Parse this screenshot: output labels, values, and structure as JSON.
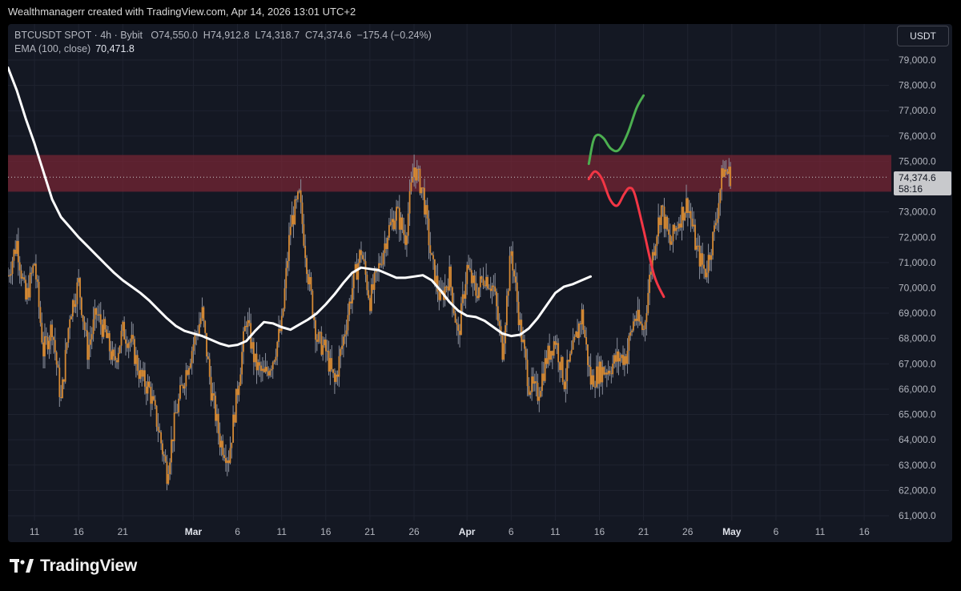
{
  "header": {
    "attribution": "Wealthmanagerr created with TradingView.com, Apr 14, 2026 13:01 UTC+2"
  },
  "legend": {
    "symbol": "BTCUSDT SPOT · 4h · Bybit",
    "o_label": "O",
    "o": "74,550.0",
    "h_label": "H",
    "h": "74,912.8",
    "l_label": "L",
    "l": "74,318.7",
    "c_label": "C",
    "c": "74,374.6",
    "change": "−175.4 (−0.24%)",
    "ema_label": "EMA (100, close)",
    "ema_value": "70,471.8"
  },
  "currency_button": "USDT",
  "price_tag": {
    "price": "74,374.6",
    "countdown": "58:16"
  },
  "brand": "TradingView",
  "colors": {
    "background": "#141823",
    "grid": "#1f2330",
    "zone": "#7a2534",
    "ema": "#ffffff",
    "candle": "#d68a34",
    "wick": "#8a8f9c",
    "bull_path": "#4caf50",
    "bear_path": "#f23645"
  },
  "chart_data": {
    "type": "line",
    "title": "BTCUSDT SPOT · 4h · Bybit",
    "ylim": [
      60600,
      79900
    ],
    "y_ticks": [
      79000,
      78000,
      77000,
      76000,
      75000,
      73000,
      72000,
      71000,
      70000,
      69000,
      68000,
      67000,
      66000,
      65000,
      64000,
      63000,
      62000,
      61000
    ],
    "y_tick_labels": [
      "79,000.0",
      "78,000.0",
      "77,000.0",
      "76,000.0",
      "75,000.0",
      "73,000.0",
      "72,000.0",
      "71,000.0",
      "70,000.0",
      "69,000.0",
      "68,000.0",
      "67,000.0",
      "66,000.0",
      "65,000.0",
      "64,000.0",
      "63,000.0",
      "62,000.0",
      "61,000.0"
    ],
    "x_ticks": [
      {
        "label": "11",
        "day": 11
      },
      {
        "label": "16",
        "day": 16
      },
      {
        "label": "21",
        "day": 21
      },
      {
        "label": "Mar",
        "day": 29,
        "bold": true
      },
      {
        "label": "6",
        "day": 34
      },
      {
        "label": "11",
        "day": 39
      },
      {
        "label": "16",
        "day": 44
      },
      {
        "label": "21",
        "day": 49
      },
      {
        "label": "26",
        "day": 54
      },
      {
        "label": "Apr",
        "day": 60,
        "bold": true
      },
      {
        "label": "6",
        "day": 65
      },
      {
        "label": "11",
        "day": 70
      },
      {
        "label": "16",
        "day": 75
      },
      {
        "label": "21",
        "day": 80
      },
      {
        "label": "26",
        "day": 85
      },
      {
        "label": "May",
        "day": 90,
        "bold": true
      },
      {
        "label": "6",
        "day": 95
      },
      {
        "label": "11",
        "day": 100
      },
      {
        "label": "16",
        "day": 105
      }
    ],
    "x_range_days": [
      8,
      107.8
    ],
    "zone": {
      "low": 73800,
      "high": 75250
    },
    "current_price": 74374.6,
    "price_path": [
      [
        8,
        70500
      ],
      [
        9,
        71800
      ],
      [
        10,
        69500
      ],
      [
        11,
        71000
      ],
      [
        12,
        67500
      ],
      [
        13,
        68500
      ],
      [
        14,
        65500
      ],
      [
        15,
        69000
      ],
      [
        16,
        70200
      ],
      [
        17,
        67500
      ],
      [
        18,
        69000
      ],
      [
        19,
        68200
      ],
      [
        20,
        67000
      ],
      [
        21,
        68300
      ],
      [
        22,
        67800
      ],
      [
        23,
        66500
      ],
      [
        24,
        66000
      ],
      [
        25,
        64500
      ],
      [
        26,
        62700
      ],
      [
        27,
        65000
      ],
      [
        28,
        66500
      ],
      [
        29,
        67800
      ],
      [
        30,
        69000
      ],
      [
        31,
        66000
      ],
      [
        32,
        64000
      ],
      [
        33,
        63300
      ],
      [
        34,
        66000
      ],
      [
        35,
        68800
      ],
      [
        36,
        67000
      ],
      [
        37,
        66500
      ],
      [
        38,
        67200
      ],
      [
        39,
        68500
      ],
      [
        40,
        72500
      ],
      [
        41,
        73600
      ],
      [
        42,
        70500
      ],
      [
        43,
        68000
      ],
      [
        44,
        67500
      ],
      [
        45,
        66200
      ],
      [
        46,
        68000
      ],
      [
        47,
        70000
      ],
      [
        48,
        71500
      ],
      [
        49,
        69500
      ],
      [
        50,
        70800
      ],
      [
        51,
        72200
      ],
      [
        52,
        73000
      ],
      [
        53,
        72000
      ],
      [
        54,
        74800
      ],
      [
        55,
        73800
      ],
      [
        56,
        71000
      ],
      [
        57,
        69500
      ],
      [
        58,
        70500
      ],
      [
        59,
        68000
      ],
      [
        60,
        70800
      ],
      [
        61,
        69800
      ],
      [
        62,
        70500
      ],
      [
        63,
        70000
      ],
      [
        64,
        67500
      ],
      [
        65,
        71500
      ],
      [
        66,
        68500
      ],
      [
        67,
        66200
      ],
      [
        68,
        65800
      ],
      [
        69,
        67200
      ],
      [
        70,
        68000
      ],
      [
        71,
        66300
      ],
      [
        72,
        67500
      ],
      [
        73,
        69000
      ],
      [
        74,
        66300
      ],
      [
        75,
        66700
      ],
      [
        76,
        66800
      ],
      [
        77,
        67200
      ],
      [
        78,
        67300
      ],
      [
        79,
        68900
      ],
      [
        80,
        68300
      ],
      [
        81,
        71300
      ],
      [
        82,
        73200
      ],
      [
        83,
        71700
      ],
      [
        84,
        72700
      ],
      [
        85,
        73400
      ],
      [
        86,
        71500
      ],
      [
        87,
        70600
      ],
      [
        88,
        72200
      ],
      [
        89,
        74700
      ],
      [
        90,
        74400
      ]
    ],
    "ema_path": [
      [
        8,
        78700
      ],
      [
        9,
        77800
      ],
      [
        10,
        76700
      ],
      [
        11,
        75700
      ],
      [
        12,
        74600
      ],
      [
        13,
        73500
      ],
      [
        14,
        72800
      ],
      [
        15,
        72400
      ],
      [
        16,
        72000
      ],
      [
        17,
        71650
      ],
      [
        18,
        71300
      ],
      [
        19,
        70950
      ],
      [
        20,
        70600
      ],
      [
        21,
        70300
      ],
      [
        22,
        70050
      ],
      [
        23,
        69800
      ],
      [
        24,
        69500
      ],
      [
        25,
        69150
      ],
      [
        26,
        68800
      ],
      [
        27,
        68500
      ],
      [
        28,
        68300
      ],
      [
        29,
        68200
      ],
      [
        30,
        68100
      ],
      [
        31,
        67950
      ],
      [
        32,
        67800
      ],
      [
        33,
        67700
      ],
      [
        34,
        67750
      ],
      [
        35,
        67900
      ],
      [
        36,
        68300
      ],
      [
        37,
        68650
      ],
      [
        38,
        68600
      ],
      [
        39,
        68450
      ],
      [
        40,
        68350
      ],
      [
        41,
        68550
      ],
      [
        42,
        68750
      ],
      [
        43,
        69000
      ],
      [
        44,
        69350
      ],
      [
        45,
        69750
      ],
      [
        46,
        70200
      ],
      [
        47,
        70600
      ],
      [
        48,
        70800
      ],
      [
        49,
        70750
      ],
      [
        50,
        70700
      ],
      [
        51,
        70550
      ],
      [
        52,
        70400
      ],
      [
        53,
        70400
      ],
      [
        54,
        70450
      ],
      [
        55,
        70500
      ],
      [
        56,
        70300
      ],
      [
        57,
        69900
      ],
      [
        58,
        69450
      ],
      [
        59,
        69100
      ],
      [
        60,
        68900
      ],
      [
        61,
        68850
      ],
      [
        62,
        68700
      ],
      [
        63,
        68450
      ],
      [
        64,
        68200
      ],
      [
        65,
        68100
      ],
      [
        66,
        68150
      ],
      [
        67,
        68400
      ],
      [
        68,
        68800
      ],
      [
        69,
        69300
      ],
      [
        70,
        69800
      ],
      [
        71,
        70050
      ],
      [
        72,
        70150
      ],
      [
        73,
        70300
      ],
      [
        74,
        70450
      ]
    ],
    "bull_projection": [
      [
        73.8,
        74900
      ],
      [
        74.3,
        75800
      ],
      [
        74.8,
        76050
      ],
      [
        75.5,
        75900
      ],
      [
        76.3,
        75500
      ],
      [
        77.2,
        75450
      ],
      [
        78.2,
        76100
      ],
      [
        79.2,
        77100
      ],
      [
        80,
        77600
      ]
    ],
    "bear_projection": [
      [
        73.8,
        74300
      ],
      [
        74.5,
        74600
      ],
      [
        75.3,
        74300
      ],
      [
        76.2,
        73500
      ],
      [
        77.0,
        73250
      ],
      [
        77.8,
        73700
      ],
      [
        78.4,
        73950
      ],
      [
        79.0,
        73700
      ],
      [
        80.0,
        72300
      ],
      [
        81.2,
        70500
      ],
      [
        82.3,
        69650
      ]
    ]
  }
}
